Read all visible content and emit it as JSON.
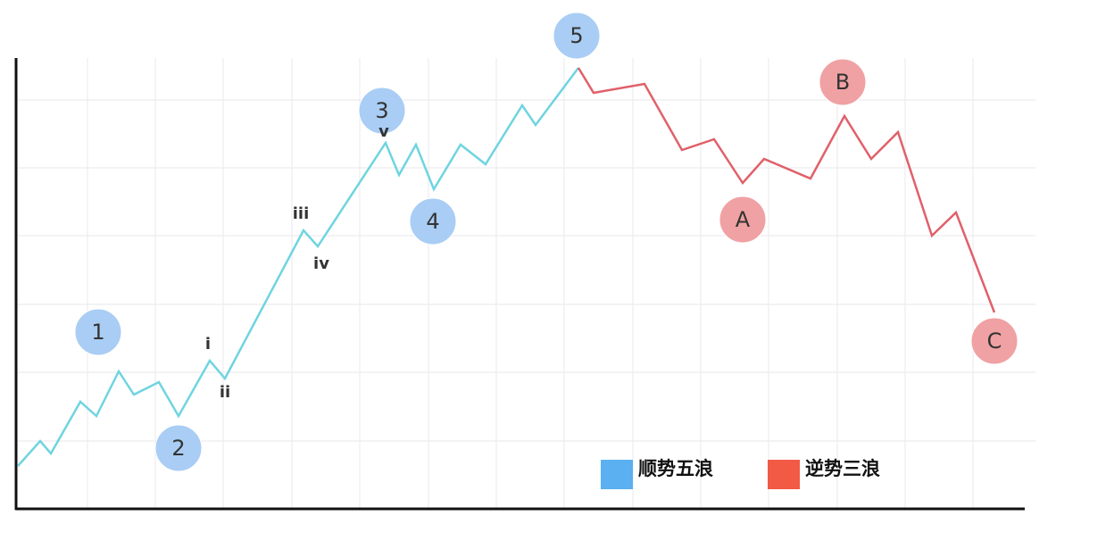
{
  "waves": {
    "impulse": {
      "color": "#5ab0f0",
      "labels": [
        "1",
        "2",
        "3",
        "4",
        "5"
      ],
      "sub_labels": [
        "i",
        "ii",
        "iii",
        "iv",
        "v"
      ]
    },
    "corrective": {
      "color": "#f25a45",
      "labels": [
        "A",
        "B",
        "C"
      ]
    }
  },
  "legend": [
    {
      "name": "顺势五浪",
      "color": "#5ab0f0"
    },
    {
      "name": "逆势三浪",
      "color": "#f25a45"
    }
  ]
}
